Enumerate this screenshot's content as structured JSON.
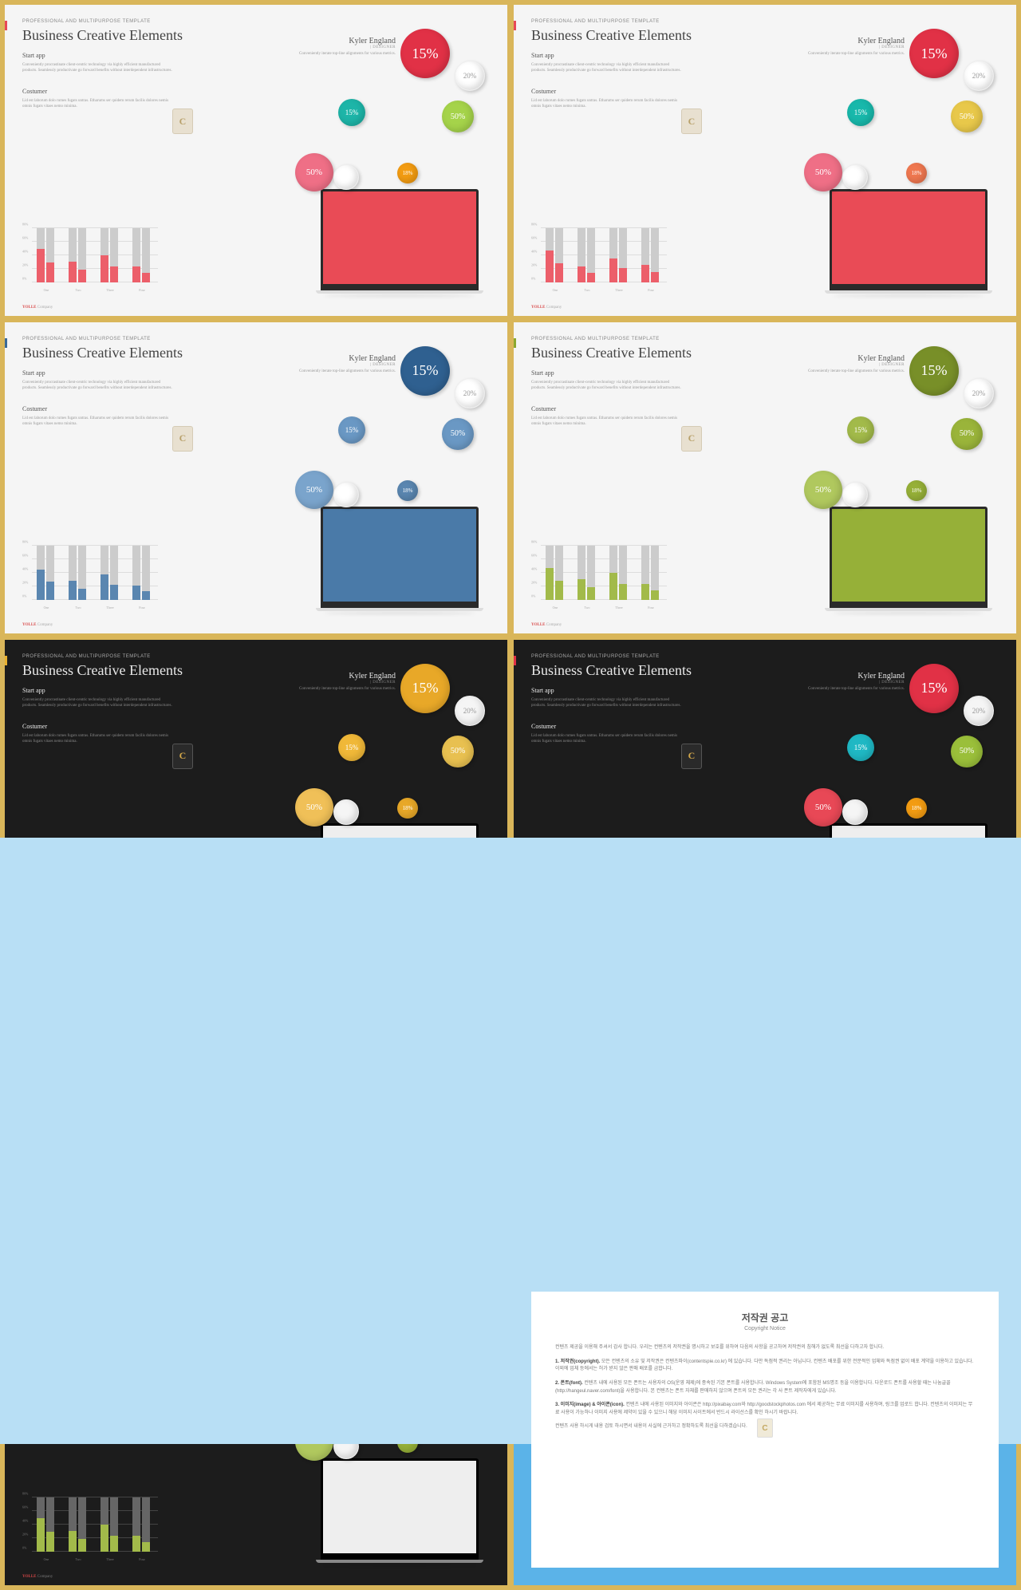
{
  "common": {
    "eyebrow": "PROFESSIONAL AND MULTIPURPOSE  TEMPLATE",
    "title": "Business Creative Elements",
    "author": "Kyler England",
    "role": "| DESIGNER",
    "author_sub": "Conveniently iterate top-line alignments for various metrics.",
    "section1_h": "Start app",
    "section1_p": "Conveniently procrastinate client-centric technology via highly efficient manufactured products. Seamlessly productivate go forward benefits without interdependent infrastructures.",
    "section2_h": "Costumer",
    "section2_p": "Lid est laborum dolo rumes fugats untras. Etharums ser quidem rerum facilis dolores nemis omnis fugats vitaes nemo minima.",
    "footer_brand": "YOLLE",
    "footer_co": "Company",
    "badge_letter": "C"
  },
  "chart": {
    "y_labels": [
      "80%",
      "60%",
      "40%",
      "20%",
      "0%"
    ],
    "x_labels": [
      "One",
      "Two",
      "Three",
      "Four"
    ],
    "bar_bg_height": 68,
    "series": [
      {
        "bars": [
          42,
          26,
          34,
          20
        ]
      },
      {
        "bars": [
          40,
          20,
          30,
          22
        ]
      },
      {
        "bars": [
          38,
          24,
          32,
          18
        ]
      },
      {
        "bars": [
          40,
          26,
          34,
          20
        ]
      }
    ]
  },
  "bubbles": {
    "b15": "15%",
    "b20": "20%",
    "btl": "15%",
    "btr": "50%",
    "bl": "50%",
    "bc": "18%"
  },
  "slides": [
    {
      "bg": "light",
      "accent": "#e74856",
      "screen": "#e94b56",
      "bars": "#ec5f6a",
      "b15": "#e13146",
      "btl": "#1db5a8",
      "btr": "#a5d34a",
      "bl": "#ef6f86",
      "bc": "#f39c12"
    },
    {
      "bg": "light",
      "accent": "#e74856",
      "screen": "#e94b56",
      "bars": "#ec5f6a",
      "b15": "#e13146",
      "btl": "#18b8ab",
      "btr": "#e8c84a",
      "bl": "#ef6f86",
      "bc": "#f07850"
    },
    {
      "bg": "light",
      "accent": "#3a6a98",
      "screen": "#4a7aa8",
      "bars": "#5a86b0",
      "b15": "#2f6090",
      "btl": "#6a98c4",
      "btr": "#6a98c4",
      "bl": "#7aa4cc",
      "bc": "#5a86b0"
    },
    {
      "bg": "light",
      "accent": "#8aa82e",
      "screen": "#96b038",
      "bars": "#a2ba4a",
      "b15": "#788f28",
      "btl": "#a2ba4a",
      "btr": "#9ab43a",
      "bl": "#b0c85e",
      "bc": "#96b038"
    },
    {
      "bg": "dark",
      "accent": "#e8b030",
      "screen": "#eeeeee",
      "bars": "#f0b828",
      "b15": "#e8a828",
      "btl": "#f0b838",
      "btr": "#e8c050",
      "bl": "#f0c058",
      "bc": "#e8a828"
    },
    {
      "bg": "dark",
      "accent": "#e13146",
      "screen": "#eeeeee",
      "bars": "#e84856",
      "b15": "#e13146",
      "btl": "#1fb8c4",
      "btr": "#9abf3a",
      "bl": "#e84856",
      "bc": "#f39c12"
    },
    {
      "bg": "dark",
      "accent": "#e8526a",
      "screen": "#eeeeee",
      "bars": "#ec6478",
      "b15": "#e14862",
      "btl": "#1db5a8",
      "btr": "#d4b848",
      "bl": "#ef6f86",
      "bc": "#f0885a"
    },
    {
      "bg": "dark",
      "accent": "#3a6a98",
      "screen": "#eeeeee",
      "bars": "#5a86b0",
      "b15": "#2f6090",
      "btl": "#5a8ab8",
      "btr": "#5a8ab8",
      "bl": "#4a78a4",
      "bc": "#4a78a4"
    },
    {
      "bg": "dark",
      "accent": "#8aa82e",
      "screen": "#eeeeee",
      "bars": "#a2ba4a",
      "b15": "#788f28",
      "btl": "#a2ba4a",
      "btr": "#9ab43a",
      "bl": "#b0c85e",
      "bc": "#96b038"
    }
  ],
  "copyright": {
    "title": "저작권 공고",
    "sub": "Copyright Notice",
    "p0": "컨텐츠 제공을 이용해 주셔서 감사 합니다. 우리는 컨텐츠의 저작권을 명시하고 보호를 위하여 다음의 사항을 공고하여 저작권의 침해가 없도록 최선을 다하고자 합니다.",
    "p1_h": "1. 저작권(copyright).",
    "p1": "모든 컨텐츠의 소유 및 저작권은 컨텐츠파이(contentspie.co.kr) 에 있습니다. 다만 독점적 권리는 아닙니다. 컨텐츠 배포를 위한 전문적인 업체와 독점권 없이 배포 계약을 이용하고 있습니다. 이외에 업체 등에서는 허가 받지 않은 판매 배포를 금합니다.",
    "p2_h": "2. 폰트(font).",
    "p2": "컨텐츠 내에 사용된 모든 폰트는 사용자의 OS(운영 체제)에 종속된 기본 폰트를 사용합니다. Windows System에 포함된 MS명조 등을 이용합니다. 다운로드 폰트를 사용할 때는 나눔글꼴(http://hangeul.naver.com/font)을 사용합니다. 본 컨텐츠는 폰트 자체를 판매하지 않으며 폰트의 모든 권리는 각 사 폰트 제작자에게 있습니다.",
    "p3_h": "3. 이미지(image) & 아이콘(icon).",
    "p3": "컨텐츠 내에 사용된 이미지와 아이콘은 http://pixabay.com와 http://goodstockphotos.com 에서 제공하는 무료 이미지를 사용하며, 링크를 업로드 합니다. 컨텐츠의 이미지는 무료 사용이 가능하나 이미지 사용에 제약이 있을 수 있으니 해당 이미지 사이트에서 반드시 라이선스를 확인 하시기 바랍니다.",
    "p4": "컨텐츠 사용 하시게 내용 검토 하시면서 내용이 사실에 근거하고 정확하도록 최선을 다하겠습니다."
  }
}
